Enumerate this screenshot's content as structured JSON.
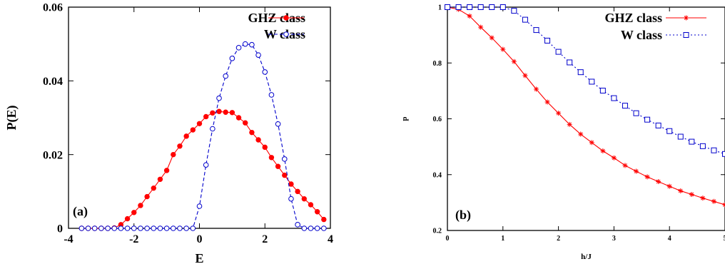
{
  "chart_data": [
    {
      "type": "line",
      "panel_label": "(a)",
      "xlabel": "E",
      "ylabel": "P(E)",
      "xlim": [
        -4,
        4
      ],
      "ylim": [
        0,
        0.06
      ],
      "xticks": [
        -4,
        -2,
        0,
        2,
        4
      ],
      "xtick_labels": [
        "-4",
        "-2",
        "0",
        "2",
        "4"
      ],
      "yticks": [
        0,
        0.02,
        0.04,
        0.06
      ],
      "ytick_labels": [
        "0",
        "0.02",
        "0.04",
        "0.06"
      ],
      "legend_position": "top-right",
      "grid": false,
      "series": [
        {
          "name": "GHZ class",
          "color": "#ff0000",
          "line_style": "solid",
          "marker": "filled-circle",
          "x": [
            -3.6,
            -3.4,
            -3.2,
            -3.0,
            -2.8,
            -2.6,
            -2.4,
            -2.2,
            -2.0,
            -1.8,
            -1.6,
            -1.4,
            -1.2,
            -1.0,
            -0.8,
            -0.6,
            -0.4,
            -0.2,
            0.0,
            0.2,
            0.4,
            0.6,
            0.8,
            1.0,
            1.2,
            1.4,
            1.6,
            1.8,
            2.0,
            2.2,
            2.4,
            2.6,
            2.8,
            3.0,
            3.2,
            3.4,
            3.6,
            3.8
          ],
          "y": [
            0,
            0,
            0,
            0,
            0,
            0.0001,
            0.001,
            0.0026,
            0.0043,
            0.0062,
            0.0086,
            0.0109,
            0.0133,
            0.0157,
            0.02,
            0.0223,
            0.025,
            0.0267,
            0.0284,
            0.0303,
            0.0313,
            0.0317,
            0.0315,
            0.0314,
            0.03,
            0.0286,
            0.026,
            0.024,
            0.022,
            0.0192,
            0.0168,
            0.0144,
            0.012,
            0.01,
            0.008,
            0.0064,
            0.0045,
            0.0024
          ]
        },
        {
          "name": "W class",
          "color": "#0000cc",
          "line_style": "dashed",
          "marker": "open-circle",
          "x": [
            -3.6,
            -3.4,
            -3.2,
            -3.0,
            -2.8,
            -2.6,
            -2.4,
            -2.2,
            -2.0,
            -1.8,
            -1.6,
            -1.4,
            -1.2,
            -1.0,
            -0.8,
            -0.6,
            -0.4,
            -0.2,
            0.0,
            0.2,
            0.4,
            0.6,
            0.8,
            1.0,
            1.2,
            1.4,
            1.6,
            1.8,
            2.0,
            2.2,
            2.4,
            2.6,
            2.8,
            3.0,
            3.2,
            3.4,
            3.6,
            3.8
          ],
          "y": [
            0,
            0,
            0,
            0,
            0,
            0,
            0,
            0,
            0,
            0,
            0,
            0,
            0,
            0,
            0,
            0,
            0,
            0,
            0.006,
            0.0172,
            0.027,
            0.0353,
            0.0413,
            0.0461,
            0.049,
            0.05,
            0.0498,
            0.047,
            0.0424,
            0.0362,
            0.0283,
            0.0188,
            0.008,
            0.001,
            0,
            0,
            0,
            0
          ]
        }
      ]
    },
    {
      "type": "line",
      "panel_label": "(b)",
      "xlabel": "h/J",
      "ylabel": "p",
      "xlim": [
        0,
        5
      ],
      "ylim": [
        0.2,
        1
      ],
      "xticks": [
        0,
        1,
        2,
        3,
        4,
        5
      ],
      "xtick_labels": [
        "0",
        "1",
        "2",
        "3",
        "4",
        "5"
      ],
      "yticks": [
        0.2,
        0.4,
        0.6,
        0.8,
        1.0
      ],
      "ytick_labels": [
        "0.2",
        "0.4",
        "0.6",
        "0.8",
        "1"
      ],
      "legend_position": "top-right",
      "grid": false,
      "series": [
        {
          "name": "GHZ class",
          "color": "#ff0000",
          "line_style": "solid",
          "marker": "asterisk",
          "x": [
            0,
            0.2,
            0.4,
            0.6,
            0.8,
            1.0,
            1.2,
            1.4,
            1.6,
            1.8,
            2.0,
            2.2,
            2.4,
            2.6,
            2.8,
            3.0,
            3.2,
            3.4,
            3.6,
            3.8,
            4.0,
            4.2,
            4.4,
            4.6,
            4.8,
            5.0
          ],
          "y": [
            1.0,
            0.992,
            0.968,
            0.928,
            0.89,
            0.849,
            0.805,
            0.755,
            0.706,
            0.66,
            0.62,
            0.58,
            0.545,
            0.515,
            0.485,
            0.46,
            0.433,
            0.412,
            0.392,
            0.375,
            0.358,
            0.342,
            0.329,
            0.316,
            0.304,
            0.292
          ]
        },
        {
          "name": "W class",
          "color": "#0000cc",
          "line_style": "dotted",
          "marker": "open-square",
          "x": [
            0,
            0.2,
            0.4,
            0.6,
            0.8,
            1.0,
            1.2,
            1.4,
            1.6,
            1.8,
            2.0,
            2.2,
            2.4,
            2.6,
            2.8,
            3.0,
            3.2,
            3.4,
            3.6,
            3.8,
            4.0,
            4.2,
            4.4,
            4.6,
            4.8,
            5.0
          ],
          "y": [
            1.0,
            1.0,
            1.0,
            1.0,
            1.0,
            1.0,
            0.987,
            0.955,
            0.918,
            0.88,
            0.84,
            0.802,
            0.767,
            0.733,
            0.701,
            0.674,
            0.647,
            0.62,
            0.597,
            0.576,
            0.556,
            0.536,
            0.518,
            0.502,
            0.487,
            0.474
          ]
        }
      ]
    }
  ]
}
